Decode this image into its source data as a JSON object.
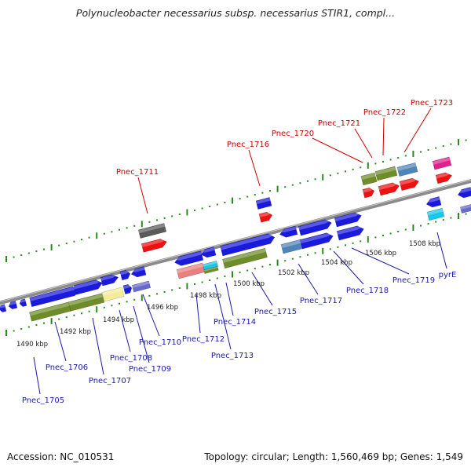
{
  "header": {
    "title": "Polynucleobacter necessarius subsp. necessarius STIR1, compl..."
  },
  "footer": {
    "accession": "Accession: NC_010531",
    "summary": "Topology: circular; Length: 1,560,469 bp; Genes: 1,549"
  },
  "colors": {
    "backbone": "#8a8a8a",
    "tick": "#2a8a1e",
    "label_red": "#cc0000",
    "label_blue": "#1a1aa8",
    "gene_blue": "#1a1adc",
    "gene_red": "#ee1111",
    "gene_olive": "#6e8c2a",
    "gene_steel": "#4f84b8",
    "gene_grey": "#5a5a5a",
    "gene_pink": "#e88080",
    "gene_cyan": "#18c8e8",
    "gene_magenta": "#e0208c",
    "gene_cream": "#f4ec98",
    "gene_lavender": "#6a6acc"
  },
  "coordinate_labels": [
    "1490 kbp",
    "1492 kbp",
    "1494 kbp",
    "1496 kbp",
    "1498 kbp",
    "1500 kbp",
    "1502 kbp",
    "1504 kbp",
    "1506 kbp",
    "1508 kbp"
  ],
  "gene_labels_top": [
    "Pnec_1711",
    "Pnec_1716",
    "Pnec_1720",
    "Pnec_1721",
    "Pnec_1722",
    "Pnec_1723"
  ],
  "gene_labels_bottom": [
    "Pnec_1705",
    "Pnec_1706",
    "Pnec_1707",
    "Pnec_1708",
    "Pnec_1709",
    "Pnec_1710",
    "Pnec_1712",
    "Pnec_1713",
    "Pnec_1714",
    "Pnec_1715",
    "Pnec_1717",
    "Pnec_1718",
    "Pnec_1719",
    "pyrE"
  ]
}
